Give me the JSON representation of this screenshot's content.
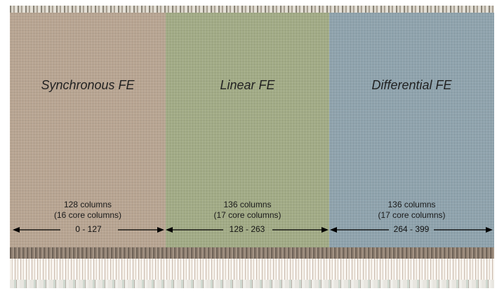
{
  "regions": [
    {
      "title": "Synchronous FE",
      "columns_line1": "128 columns",
      "columns_line2": "(16 core columns)",
      "range": "0 - 127",
      "color": "#b8a592"
    },
    {
      "title": "Linear FE",
      "columns_line1": "136 columns",
      "columns_line2": "(17 core columns)",
      "range": "128 - 263",
      "color": "#a2ab86"
    },
    {
      "title": "Differential FE",
      "columns_line1": "136 columns",
      "columns_line2": "(17 core columns)",
      "range": "264 - 399",
      "color": "#8fa3ad"
    }
  ]
}
